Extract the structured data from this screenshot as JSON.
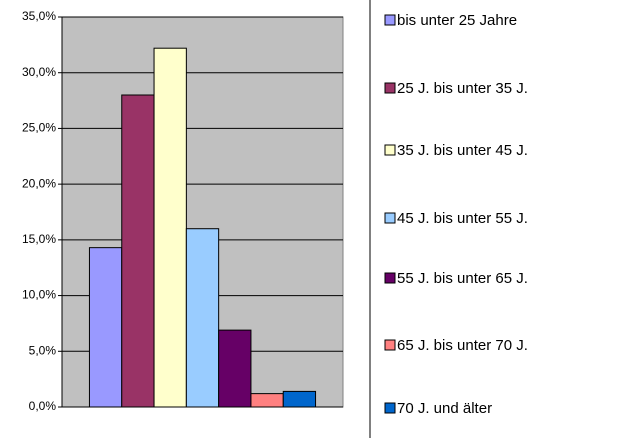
{
  "chart_data": {
    "type": "bar",
    "categories": [
      null
    ],
    "series": [
      {
        "name": "bis unter 25 Jahre",
        "color": "#9999ff",
        "values": [
          14.3
        ]
      },
      {
        "name": "25 J. bis unter 35 J.",
        "color": "#993366",
        "values": [
          28.0
        ]
      },
      {
        "name": "35 J. bis unter 45 J.",
        "color": "#ffffcc",
        "values": [
          32.2
        ]
      },
      {
        "name": "45 J. bis unter 55 J.",
        "color": "#99ccff",
        "values": [
          16.0
        ]
      },
      {
        "name": "55 J. bis unter 65 J.",
        "color": "#660066",
        "values": [
          6.9
        ]
      },
      {
        "name": "65 J. bis unter 70 J.",
        "color": "#ff8080",
        "values": [
          1.2
        ]
      },
      {
        "name": "70 J. und älter",
        "color": "#0066cc",
        "values": [
          1.4
        ]
      }
    ],
    "ylim": [
      0,
      35
    ],
    "yticks": [
      {
        "value": 0,
        "label": "0,0%"
      },
      {
        "value": 5,
        "label": "5,0%"
      },
      {
        "value": 10,
        "label": "10,0%"
      },
      {
        "value": 15,
        "label": "15,0%"
      },
      {
        "value": 20,
        "label": "20,0%"
      },
      {
        "value": 25,
        "label": "25,0%"
      },
      {
        "value": 30,
        "label": "30,0%"
      },
      {
        "value": 35,
        "label": "35,0%"
      }
    ],
    "grid": true,
    "plot_background": "#c0c0c0",
    "legend": "right"
  }
}
